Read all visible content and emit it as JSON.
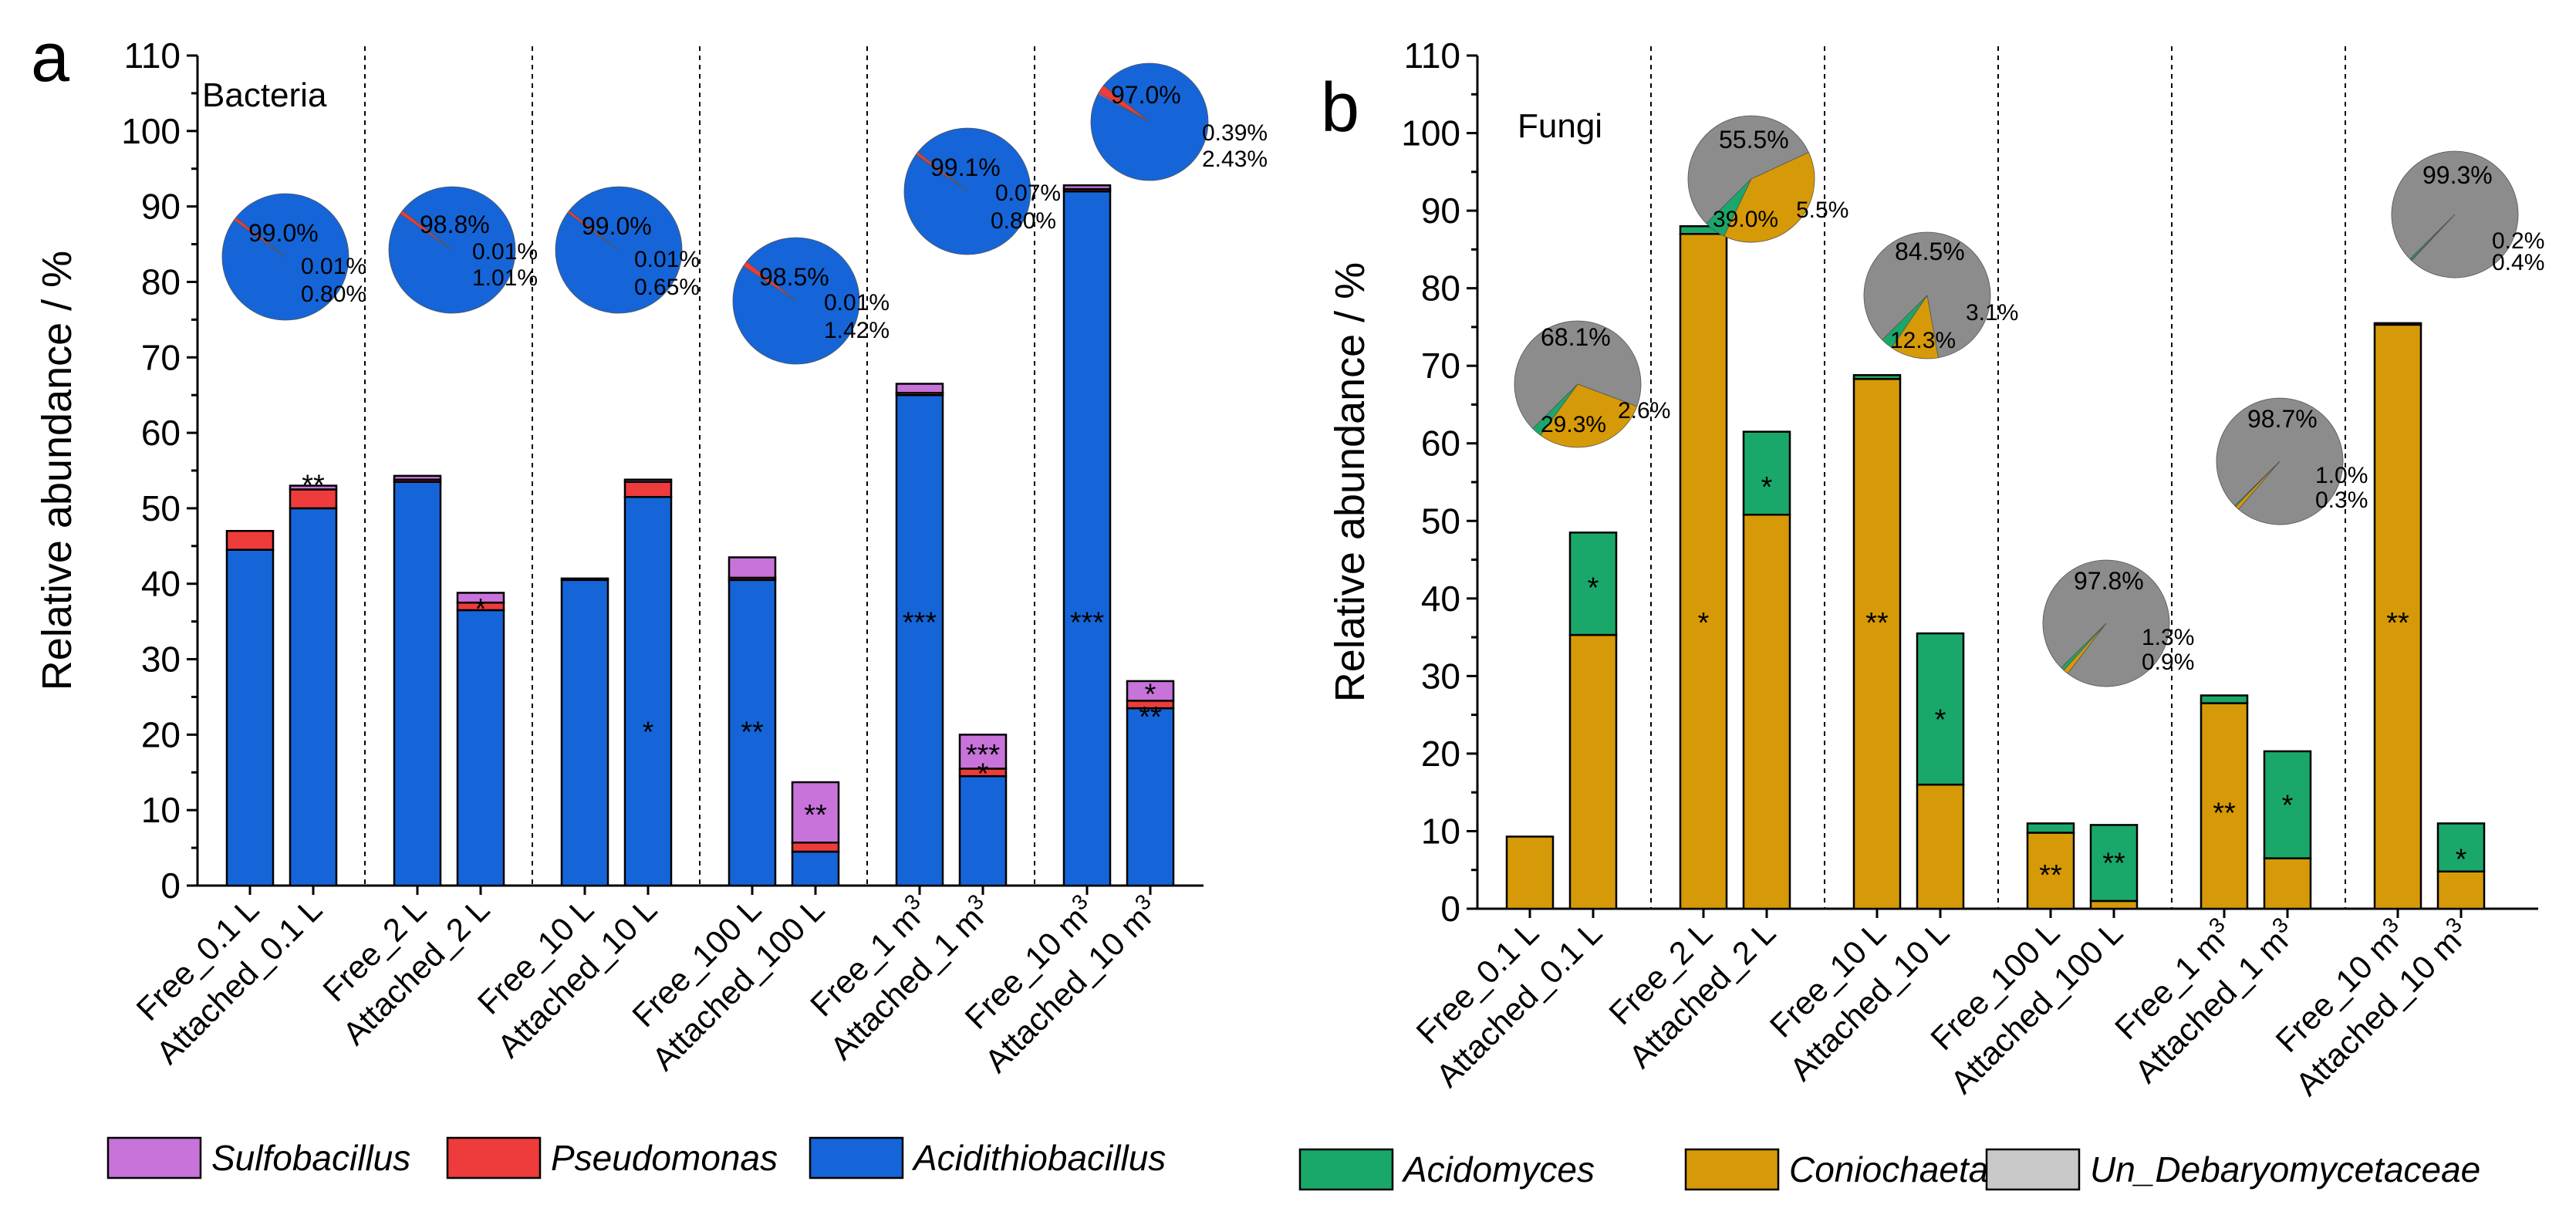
{
  "colors": {
    "Sulfobacillus": "#c773d9",
    "Pseudomonas": "#ee3b3b",
    "Acidithiobacillus": "#1565d8",
    "Acidomyces": "#1aa86a",
    "Coniochaeta": "#d69a08",
    "Un_Debaryomycetaceae": "#8c8c8c",
    "Un_Debaryomycetaceae_legend": "#c8c8c8"
  },
  "chart_data": [
    {
      "type": "bar",
      "panel_letter": "a",
      "kingdom_label": "Bacteria",
      "ylabel": "Relative abundance / %",
      "ylim": [
        0,
        110
      ],
      "yticks": [
        "0",
        "10",
        "20",
        "30",
        "40",
        "50",
        "60",
        "70",
        "80",
        "90",
        "100",
        "110"
      ],
      "categories": [
        "Free_0.1 L",
        "Attached_0.1 L",
        "Free_2 L",
        "Attached_2 L",
        "Free_10 L",
        "Attached_10 L",
        "Free_100 L",
        "Attached_100 L",
        "Free_1 m³",
        "Attached_1 m³",
        "Free_10 m³",
        "Attached_10 m³"
      ],
      "series": [
        {
          "name": "Acidithiobacillus",
          "values": [
            44.5,
            50,
            53.5,
            36.5,
            40.5,
            51.5,
            40.5,
            4.5,
            65,
            14.5,
            92,
            23.5
          ]
        },
        {
          "name": "Pseudomonas",
          "values": [
            2.5,
            2.5,
            0.3,
            1,
            0.2,
            2,
            0.3,
            1.2,
            0.3,
            1,
            0.3,
            1
          ]
        },
        {
          "name": "Sulfobacillus",
          "values": [
            0,
            0.5,
            0.5,
            1.3,
            0,
            0.3,
            2.7,
            8,
            1.2,
            4.5,
            0.5,
            2.6
          ]
        }
      ],
      "significance": [
        {
          "category": "Attached_0.1 L",
          "value": 53.2,
          "text": "**"
        },
        {
          "category": "Attached_2 L",
          "value": 36.8,
          "text": "*"
        },
        {
          "category": "Attached_10 L",
          "value": 20.5,
          "text": "*"
        },
        {
          "category": "Free_100 L",
          "value": 20.5,
          "text": "**"
        },
        {
          "category": "Attached_100 L",
          "value": 9.5,
          "text": "**"
        },
        {
          "category": "Free_1 m³",
          "value": 35,
          "text": "***"
        },
        {
          "category": "Attached_1 m³",
          "value": 17.5,
          "text": "***"
        },
        {
          "category": "Attached_1 m³",
          "value": 15,
          "text": "*"
        },
        {
          "category": "Free_10 m³",
          "value": 35,
          "text": "***"
        },
        {
          "category": "Attached_10 m³",
          "value": 25.5,
          "text": "*"
        },
        {
          "category": "Attached_10 m³",
          "value": 22.5,
          "text": "**"
        }
      ],
      "pies": [
        {
          "group": "0.1 L",
          "shares": [
            99.0,
            0.01,
            0.8
          ],
          "labels": [
            "99.0%",
            "0.01%",
            "0.80%"
          ]
        },
        {
          "group": "2 L",
          "shares": [
            98.8,
            0.01,
            1.01
          ],
          "labels": [
            "98.8%",
            "0.01%",
            "1.01%"
          ]
        },
        {
          "group": "10 L",
          "shares": [
            99.0,
            0.01,
            0.65
          ],
          "labels": [
            "99.0%",
            "0.01%",
            "0.65%"
          ]
        },
        {
          "group": "100 L",
          "shares": [
            98.5,
            0.01,
            1.42
          ],
          "labels": [
            "98.5%",
            "0.01%",
            "1.42%"
          ]
        },
        {
          "group": "1 m³",
          "shares": [
            99.1,
            0.07,
            0.8
          ],
          "labels": [
            "99.1%",
            "0.07%",
            "0.80%"
          ]
        },
        {
          "group": "10 m³",
          "shares": [
            97.0,
            0.39,
            2.43
          ],
          "labels": [
            "97.0%",
            "0.39%",
            "2.43%"
          ]
        }
      ],
      "pie_series": [
        "Acidithiobacillus",
        "Sulfobacillus",
        "Pseudomonas"
      ],
      "legend": [
        "Sulfobacillus",
        "Pseudomonas",
        "Acidithiobacillus"
      ]
    },
    {
      "type": "bar",
      "panel_letter": "b",
      "kingdom_label": "Fungi",
      "ylabel": "Relative abundance / %",
      "ylim": [
        0,
        110
      ],
      "yticks": [
        "0",
        "10",
        "20",
        "30",
        "40",
        "50",
        "60",
        "70",
        "80",
        "90",
        "100",
        "110"
      ],
      "categories": [
        "Free_0.1 L",
        "Attached_0.1 L",
        "Free_2 L",
        "Attached_2 L",
        "Free_10 L",
        "Attached_10 L",
        "Free_100 L",
        "Attached_100 L",
        "Free_1 m³",
        "Attached_1 m³",
        "Free_10 m³",
        "Attached_10 m³"
      ],
      "series": [
        {
          "name": "Coniochaeta",
          "values": [
            9.3,
            35.3,
            87,
            50.8,
            68.3,
            16,
            9.8,
            1,
            26.5,
            6.5,
            75.3,
            4.8
          ]
        },
        {
          "name": "Acidomyces",
          "values": [
            0,
            13.2,
            1,
            10.7,
            0.5,
            19.5,
            1.2,
            9.8,
            1,
            13.8,
            0.2,
            6.2
          ]
        }
      ],
      "significance": [
        {
          "category": "Attached_0.1 L",
          "value": 41.5,
          "text": "*"
        },
        {
          "category": "Free_2 L",
          "value": 37,
          "text": "*"
        },
        {
          "category": "Attached_2 L",
          "value": 54.5,
          "text": "*"
        },
        {
          "category": "Free_10 L",
          "value": 37,
          "text": "**"
        },
        {
          "category": "Attached_10 L",
          "value": 24.5,
          "text": "*"
        },
        {
          "category": "Free_100 L",
          "value": 4.5,
          "text": "**"
        },
        {
          "category": "Attached_100 L",
          "value": 6,
          "text": "**"
        },
        {
          "category": "Free_1 m³",
          "value": 12.5,
          "text": "**"
        },
        {
          "category": "Attached_1 m³",
          "value": 13.5,
          "text": "*"
        },
        {
          "category": "Free_10 m³",
          "value": 37,
          "text": "**"
        },
        {
          "category": "Attached_10 m³",
          "value": 6.5,
          "text": "*"
        }
      ],
      "pies": [
        {
          "group": "0.1 L",
          "shares": [
            68.1,
            29.3,
            2.6
          ],
          "labels": [
            "68.1%",
            "29.3%",
            "2.6%"
          ]
        },
        {
          "group": "2 L",
          "shares": [
            55.5,
            39.0,
            5.5
          ],
          "labels": [
            "55.5%",
            "39.0%",
            "5.5%"
          ]
        },
        {
          "group": "10 L",
          "shares": [
            84.5,
            12.3,
            3.1
          ],
          "labels": [
            "84.5%",
            "12.3%",
            "3.1%"
          ]
        },
        {
          "group": "100 L",
          "shares": [
            97.8,
            1.3,
            0.9
          ],
          "labels": [
            "97.8%",
            "1.3%",
            "0.9%"
          ]
        },
        {
          "group": "1 m³",
          "shares": [
            98.7,
            1.0,
            0.3
          ],
          "labels": [
            "98.7%",
            "1.0%",
            "0.3%"
          ]
        },
        {
          "group": "10 m³",
          "shares": [
            99.3,
            0.2,
            0.4
          ],
          "labels": [
            "99.3%",
            "0.2%",
            "0.4%"
          ]
        }
      ],
      "pie_series": [
        "Un_Debaryomycetaceae",
        "Coniochaeta",
        "Acidomyces"
      ],
      "legend": [
        "Acidomyces",
        "Coniochaeta",
        "Un_Debaryomycetaceae"
      ]
    }
  ]
}
